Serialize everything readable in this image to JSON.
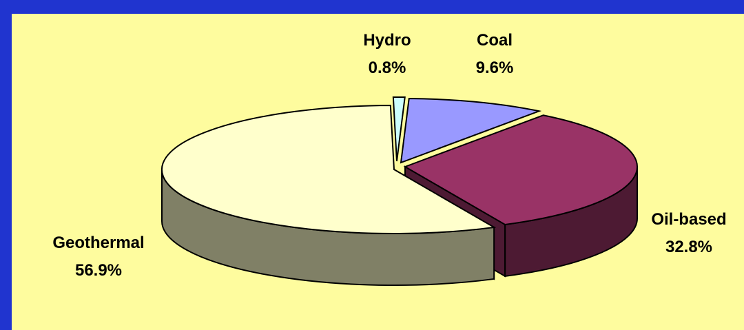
{
  "chart_data": {
    "type": "pie",
    "style": "3d",
    "title": "",
    "categories": [
      "Coal",
      "Oil-based",
      "Geothermal",
      "Hydro"
    ],
    "values": [
      9.6,
      32.8,
      56.9,
      0.8
    ],
    "labels": [
      "9.6%",
      "32.8%",
      "56.9%",
      "0.8%"
    ],
    "colors": [
      "#9999ff",
      "#993366",
      "#ffffcc",
      "#ccffff"
    ],
    "side_colors": [
      "#6b6bb3",
      "#4d1a33",
      "#808066",
      "#8fb3b3"
    ],
    "background": "#ffff99",
    "border": "#2034cf"
  }
}
